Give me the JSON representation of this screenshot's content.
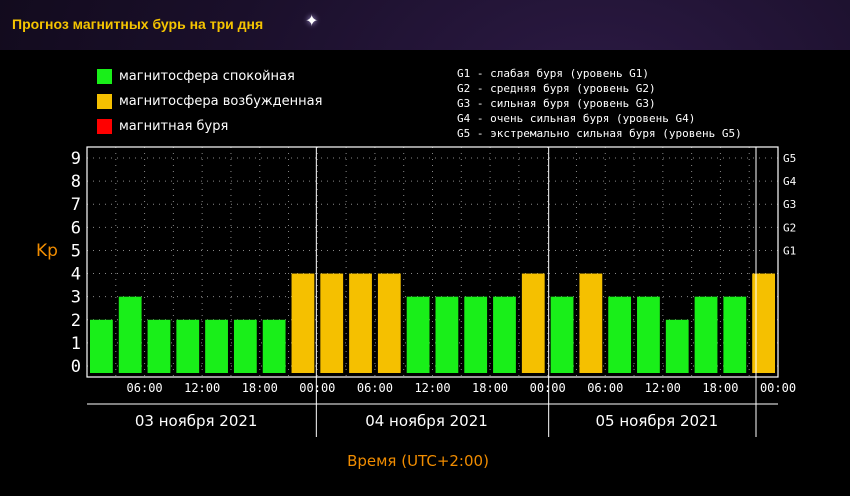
{
  "page": {
    "title": "Прогноз магнитных бурь на три дня",
    "star_glyph": "✦"
  },
  "legend_left": [
    {
      "label": "магнитосфера спокойная",
      "color": "#19ef19"
    },
    {
      "label": "магнитосфера возбужденная",
      "color": "#f5c000"
    },
    {
      "label": "магнитная буря",
      "color": "#ff0000"
    }
  ],
  "legend_right": [
    "G1 - слабая буря (уровень G1)",
    "G2 - средняя буря (уровень G2)",
    "G3 - сильная буря (уровень G3)",
    "G4 - очень сильная буря (уровень G4)",
    "G5 - экстремально сильная буря (уровень G5)"
  ],
  "chart_data": {
    "type": "bar",
    "ylabel": "Kp",
    "xlabel": "Время (UTC+2:00)",
    "ylim": [
      0,
      9
    ],
    "yticks": [
      0,
      1,
      2,
      3,
      4,
      5,
      6,
      7,
      8,
      9
    ],
    "right_ticks": [
      {
        "label": "G1",
        "y": 5
      },
      {
        "label": "G2",
        "y": 6
      },
      {
        "label": "G3",
        "y": 7
      },
      {
        "label": "G4",
        "y": 8
      },
      {
        "label": "G5",
        "y": 9
      }
    ],
    "grid": true,
    "values": [
      2,
      3,
      2,
      2,
      2,
      2,
      2,
      4,
      4,
      4,
      4,
      3,
      3,
      3,
      3,
      4,
      3,
      4,
      3,
      3,
      2,
      3,
      3,
      4
    ],
    "bar_colors": [
      "#19ef19",
      "#19ef19",
      "#19ef19",
      "#19ef19",
      "#19ef19",
      "#19ef19",
      "#19ef19",
      "#f5c000",
      "#f5c000",
      "#f5c000",
      "#f5c000",
      "#19ef19",
      "#19ef19",
      "#19ef19",
      "#19ef19",
      "#f5c000",
      "#19ef19",
      "#f5c000",
      "#19ef19",
      "#19ef19",
      "#19ef19",
      "#19ef19",
      "#19ef19",
      "#f5c000"
    ],
    "time_labels": [
      "06:00",
      "12:00",
      "18:00",
      "00:00",
      "06:00",
      "12:00",
      "18:00",
      "00:00",
      "06:00",
      "12:00",
      "18:00",
      "00:00"
    ],
    "days": [
      "03 ноября 2021",
      "04 ноября 2021",
      "05 ноября 2021"
    ],
    "colors": {
      "axis": "#ffffff",
      "label": "#f08c00",
      "grid": "#888888"
    }
  }
}
